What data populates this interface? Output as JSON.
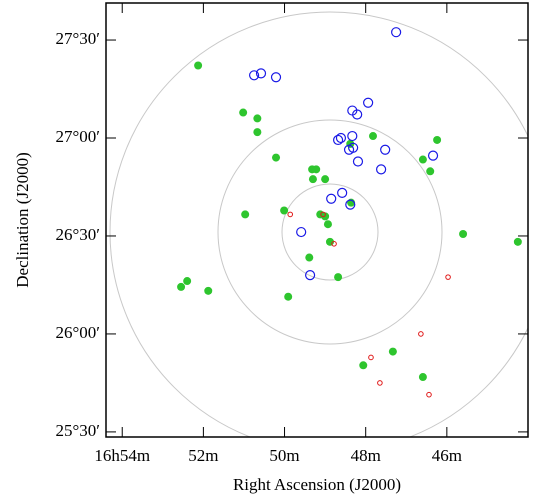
{
  "chart_data": {
    "type": "scatter",
    "x_label": "Right Ascension (J2000)",
    "y_label": "Declination (J2000)",
    "xlim": [
      54.4,
      44.0
    ],
    "ylim": [
      25.474,
      27.689
    ],
    "xticks": [
      {
        "value": 54,
        "label": "16h54m"
      },
      {
        "value": 52,
        "label": "52m"
      },
      {
        "value": 50,
        "label": "50m"
      },
      {
        "value": 48,
        "label": "48m"
      },
      {
        "value": 46,
        "label": "46m"
      }
    ],
    "yticks": [
      {
        "value": 25.5,
        "label": "25°30′"
      },
      {
        "value": 26,
        "label": "26°00′"
      },
      {
        "value": 26.5,
        "label": "26°30′"
      },
      {
        "value": 27,
        "label": "27°00′"
      },
      {
        "value": 27.5,
        "label": "27°30′"
      }
    ],
    "series": [
      {
        "color": "#2ec52e",
        "marker": "filled",
        "x": [
          52.13,
          51.02,
          50.67,
          50.67,
          50.21,
          49.22,
          49.32,
          49.0,
          49.3,
          50.97,
          50.01,
          49.12,
          49.0,
          48.93,
          48.88,
          48.36,
          48.38,
          47.82,
          46.59,
          46.41,
          46.24,
          45.6,
          44.25,
          49.39,
          48.68,
          52.4,
          52.55,
          51.88,
          49.91,
          47.33,
          48.06,
          46.59
        ],
        "values": [
          27.37,
          27.13,
          27.1,
          27.03,
          26.9,
          26.84,
          26.84,
          26.79,
          26.79,
          26.61,
          26.63,
          26.61,
          26.6,
          26.56,
          26.47,
          26.67,
          26.97,
          27.01,
          26.89,
          26.83,
          26.99,
          26.51,
          26.47,
          26.39,
          26.29,
          26.27,
          26.24,
          26.22,
          26.19,
          25.91,
          25.84,
          25.78
        ]
      },
      {
        "color": "#1a1ae6",
        "marker": "open",
        "x": [
          47.25,
          50.75,
          50.58,
          50.21,
          47.94,
          48.33,
          48.21,
          48.33,
          48.61,
          48.68,
          48.31,
          48.41,
          47.52,
          48.19,
          46.34,
          47.62,
          48.58,
          48.85,
          48.38,
          49.59,
          49.37
        ],
        "values": [
          27.54,
          27.32,
          27.33,
          27.31,
          27.18,
          27.14,
          27.12,
          27.01,
          27.0,
          26.99,
          26.95,
          26.94,
          26.94,
          26.88,
          26.91,
          26.84,
          26.72,
          26.69,
          26.66,
          26.52,
          26.3
        ]
      },
      {
        "color": "#e01818",
        "marker": "small",
        "x": [
          49.86,
          49.05,
          48.78,
          45.97,
          46.64,
          47.87,
          47.65,
          46.44
        ],
        "values": [
          26.61,
          26.61,
          26.46,
          26.29,
          26.0,
          25.88,
          25.75,
          25.69
        ]
      }
    ]
  }
}
